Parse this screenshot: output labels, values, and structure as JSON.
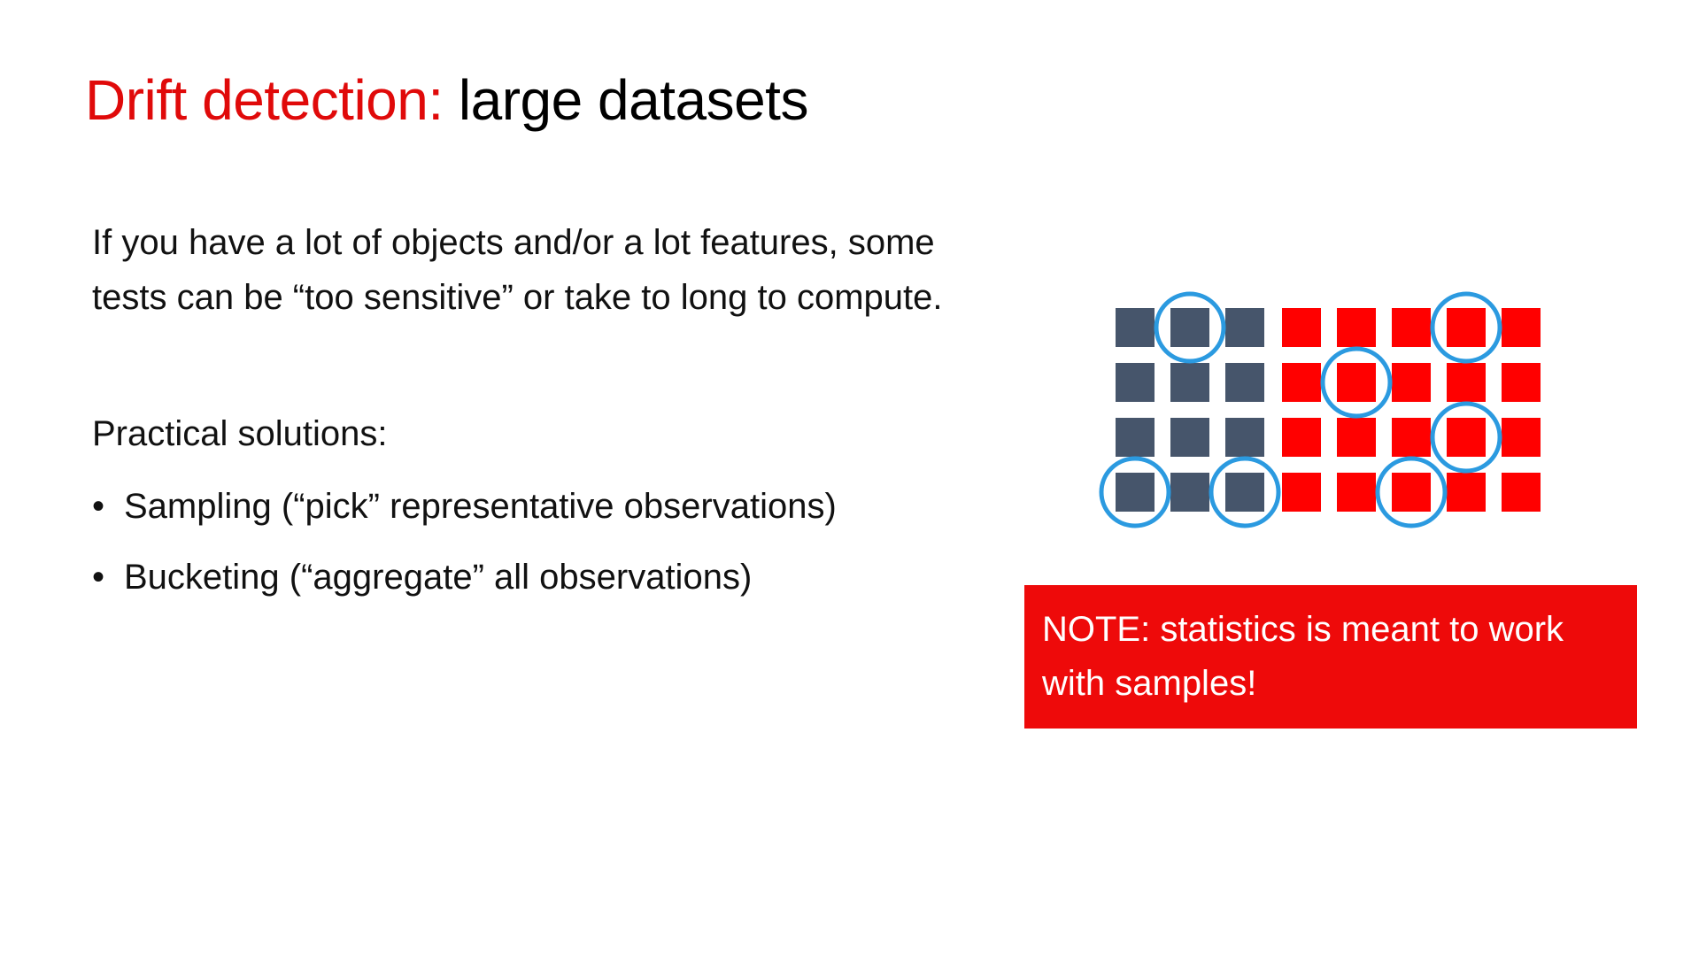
{
  "title": {
    "accent": "Drift detection:",
    "rest": "large datasets"
  },
  "intro": {
    "line1": "If you have a lot of objects and/or a lot features, some",
    "line2": "tests can be “too sensitive” or take to long to compute."
  },
  "solutions": {
    "heading": "Practical solutions:",
    "bullet_glyph": "•",
    "items": [
      {
        "label": "Sampling (“pick” representative observations)"
      },
      {
        "label": "Bucketing (“aggregate” all observations)"
      }
    ]
  },
  "note": {
    "line1": "NOTE: statistics is meant to work",
    "line2": "with samples!"
  },
  "figure": {
    "rows": 4,
    "columns": 8,
    "group_a_columns": 3,
    "group_b_columns": 5,
    "group_a_color": "#46556b",
    "group_b_color": "#ff0000",
    "circle_color": "#2b9ae0",
    "sampled_cells": [
      {
        "row": 0,
        "col": 1
      },
      {
        "row": 0,
        "col": 6
      },
      {
        "row": 1,
        "col": 4
      },
      {
        "row": 2,
        "col": 6
      },
      {
        "row": 3,
        "col": 0
      },
      {
        "row": 3,
        "col": 2
      },
      {
        "row": 3,
        "col": 5
      }
    ]
  },
  "colors": {
    "accent": "#e00a0a",
    "note_background": "#ee0a0a",
    "text": "#111111"
  }
}
